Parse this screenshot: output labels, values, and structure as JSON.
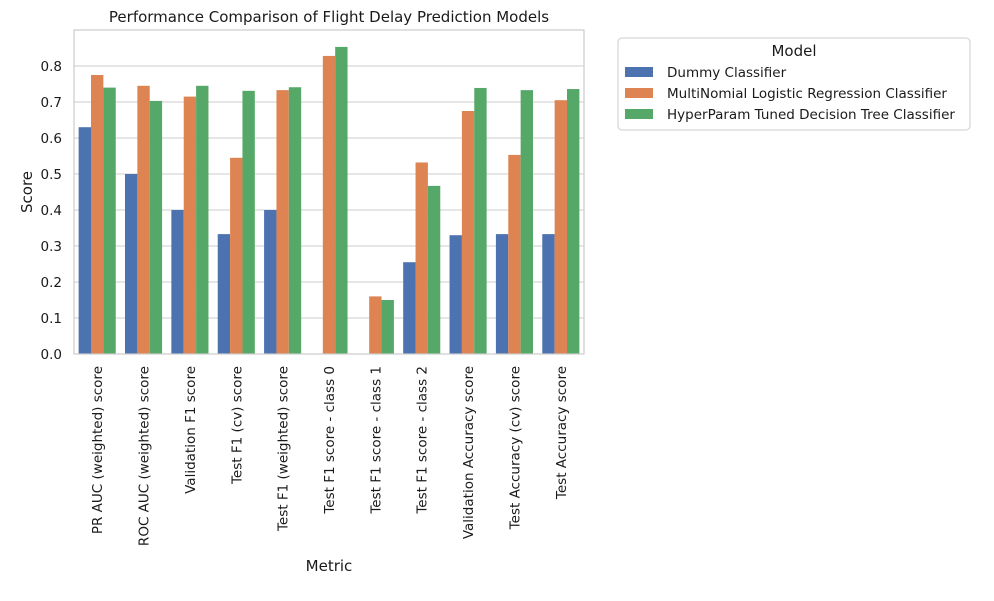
{
  "chart_data": {
    "type": "bar",
    "title": "Performance Comparison of Flight Delay Prediction Models",
    "xlabel": "Metric",
    "ylabel": "Score",
    "ylim": [
      0,
      0.9
    ],
    "yticks": [
      "0.0",
      "0.1",
      "0.2",
      "0.3",
      "0.4",
      "0.5",
      "0.6",
      "0.7",
      "0.8"
    ],
    "grid": true,
    "legend": {
      "title": "Model",
      "placement": "outside-right"
    },
    "categories": [
      "PR AUC (weighted) score",
      "ROC AUC (weighted) score",
      "Validation F1 score",
      "Test F1 (cv) score",
      "Test F1 (weighted) score",
      "Test F1 score - class 0",
      "Test F1 score - class 1",
      "Test F1 score - class 2",
      "Validation Accuracy score",
      "Test Accuracy (cv) score",
      "Test Accuracy score"
    ],
    "series": [
      {
        "name": "Dummy Classifier",
        "color": "#4c72b0",
        "values": [
          0.63,
          0.5,
          0.4,
          0.333,
          0.4,
          0.0,
          0.0,
          0.255,
          0.33,
          0.333,
          0.333
        ]
      },
      {
        "name": "MultiNomial Logistic Regression Classifier",
        "color": "#dd8452",
        "values": [
          0.775,
          0.745,
          0.715,
          0.545,
          0.733,
          0.828,
          0.16,
          0.532,
          0.675,
          0.553,
          0.705
        ]
      },
      {
        "name": "HyperParam Tuned Decision Tree Classifier",
        "color": "#55a868",
        "values": [
          0.74,
          0.703,
          0.745,
          0.731,
          0.741,
          0.853,
          0.15,
          0.467,
          0.739,
          0.733,
          0.736
        ]
      }
    ]
  }
}
